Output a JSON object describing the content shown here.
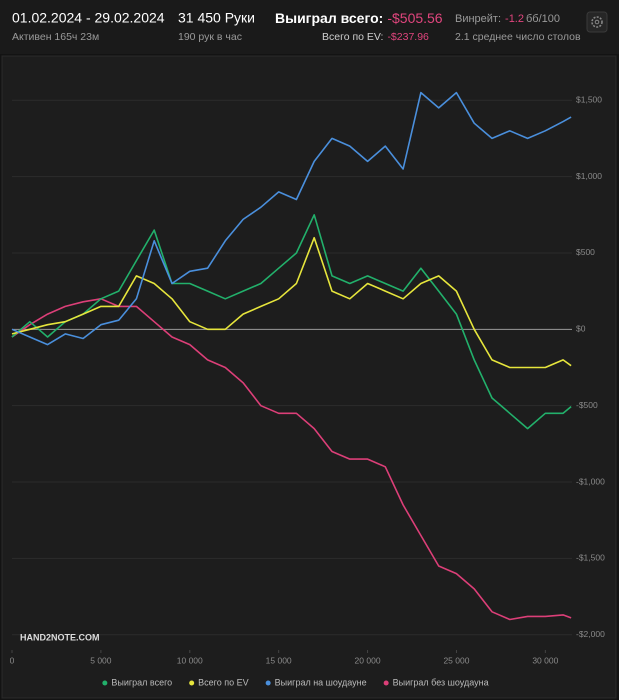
{
  "header": {
    "date_range": "01.02.2024 - 29.02.2024",
    "active": "Активен 165ч 23м",
    "hands": "31 450 Руки",
    "hands_per_hour": "190 рук в час",
    "won_label": "Выиграл всего:",
    "won_value": "-$505.56",
    "ev_label": "Всего по EV:",
    "ev_value": "-$237.96",
    "winrate_label": "Винрейт:",
    "winrate_value": "-1.2",
    "winrate_unit": "бб/100",
    "avg_tables": "2.1 среднее число столов"
  },
  "logo": "HAND2NOTE.COM",
  "chart_data": {
    "type": "line",
    "x": [
      0,
      1000,
      2000,
      3000,
      4000,
      5000,
      6000,
      7000,
      8000,
      9000,
      10000,
      11000,
      12000,
      13000,
      14000,
      15000,
      16000,
      17000,
      18000,
      19000,
      20000,
      21000,
      22000,
      23000,
      24000,
      25000,
      26000,
      27000,
      28000,
      29000,
      30000,
      31000,
      31450
    ],
    "series": [
      {
        "name": "Выиграл всего",
        "color": "#22b06b",
        "values": [
          -50,
          50,
          -50,
          50,
          100,
          200,
          250,
          450,
          650,
          300,
          300,
          250,
          200,
          250,
          300,
          400,
          500,
          750,
          350,
          300,
          350,
          300,
          250,
          400,
          250,
          100,
          -200,
          -450,
          -550,
          -650,
          -550,
          -550,
          -506
        ]
      },
      {
        "name": "Всего по EV",
        "color": "#e6e53c",
        "values": [
          -30,
          0,
          30,
          50,
          100,
          150,
          150,
          350,
          300,
          200,
          50,
          0,
          0,
          100,
          150,
          200,
          300,
          600,
          250,
          200,
          300,
          250,
          200,
          300,
          350,
          250,
          0,
          -200,
          -250,
          -250,
          -250,
          -200,
          -238
        ]
      },
      {
        "name": "Выиграл на шоудауне",
        "color": "#4a8fdc",
        "values": [
          0,
          -50,
          -100,
          -30,
          -60,
          30,
          60,
          200,
          580,
          300,
          380,
          400,
          580,
          720,
          800,
          900,
          850,
          1100,
          1250,
          1200,
          1100,
          1200,
          1050,
          1550,
          1450,
          1550,
          1350,
          1250,
          1300,
          1250,
          1300,
          1360,
          1390
        ]
      },
      {
        "name": "Выиграл без шоудауна",
        "color": "#dc3f78",
        "values": [
          -50,
          30,
          100,
          150,
          180,
          200,
          150,
          150,
          50,
          -50,
          -100,
          -200,
          -250,
          -350,
          -500,
          -550,
          -550,
          -650,
          -800,
          -850,
          -850,
          -900,
          -1150,
          -1350,
          -1550,
          -1600,
          -1700,
          -1850,
          -1900,
          -1880,
          -1880,
          -1870,
          -1890
        ]
      }
    ],
    "xlim": [
      0,
      31500
    ],
    "xticks": [
      0,
      {
        "value": 5000,
        "label": "5 000"
      },
      {
        "value": 10000,
        "label": "10 000"
      },
      {
        "value": 15000,
        "label": "15 000"
      },
      {
        "value": 20000,
        "label": "20 000"
      },
      {
        "value": 25000,
        "label": "25 000"
      },
      {
        "value": 30000,
        "label": "30 000"
      }
    ],
    "ylim": [
      -2100,
      1600
    ],
    "yticks": [
      {
        "value": -2000,
        "label": "-$2,000"
      },
      {
        "value": -1500,
        "label": "-$1,500"
      },
      {
        "value": -1000,
        "label": "-$1,000"
      },
      {
        "value": -500,
        "label": "-$500"
      },
      {
        "value": 0,
        "label": "$0"
      },
      {
        "value": 500,
        "label": "$500"
      },
      {
        "value": 1000,
        "label": "$1,000"
      },
      {
        "value": 1500,
        "label": "$1,500"
      }
    ],
    "grid": true
  }
}
